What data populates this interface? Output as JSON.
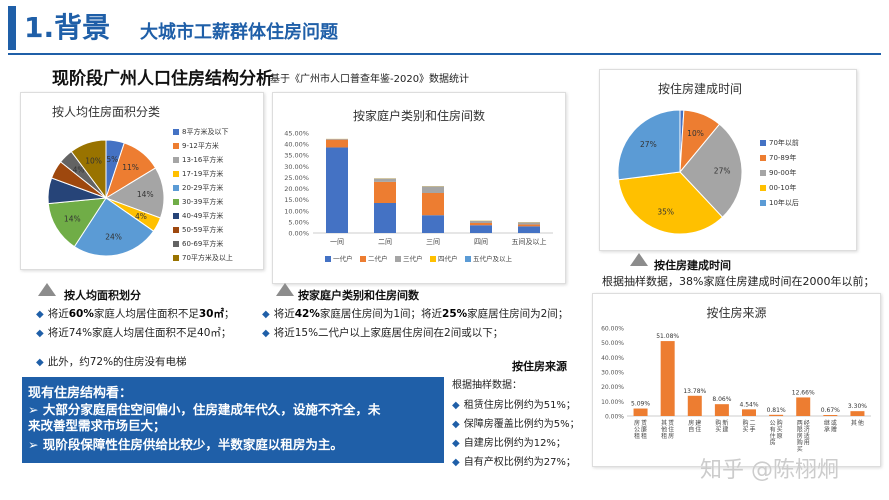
{
  "header": {
    "number": "1.背景",
    "subtitle": "大城市工薪群体住房问题"
  },
  "section": {
    "title": "现阶段广州人口住房结构分析",
    "source_note": "基于《广州市人口普查年鉴-2020》数据统计"
  },
  "chart_data": [
    {
      "type": "pie",
      "title": "按人均住房面积分类",
      "categories": [
        "8平方米及以下",
        "9-12平方米",
        "13-16平方米",
        "17-19平方米",
        "20-29平方米",
        "30-39平方米",
        "40-49平方米",
        "50-59平方米",
        "60-69平方米",
        "70平方米及以上"
      ],
      "values": [
        5,
        11,
        14,
        4,
        24,
        14,
        7,
        5,
        4,
        10
      ],
      "data_labels": [
        "5%",
        "11%",
        "14%",
        "4%",
        "24%",
        "14%",
        "",
        "",
        "4%",
        "10%"
      ],
      "colors": [
        "#4472c4",
        "#ed7d31",
        "#a5a5a5",
        "#ffc000",
        "#5b9bd5",
        "#70ad47",
        "#264478",
        "#9e480e",
        "#636363",
        "#997300"
      ],
      "legend": "right"
    },
    {
      "type": "bar",
      "stacked": true,
      "title": "按家庭户类别和住房间数",
      "categories": [
        "一间",
        "二间",
        "三间",
        "四间",
        "五间及以上"
      ],
      "series": [
        {
          "name": "一代户",
          "values": [
            38.5,
            13.5,
            8.0,
            3.5,
            3.0
          ]
        },
        {
          "name": "二代户",
          "values": [
            3.5,
            9.5,
            10.0,
            1.0,
            0.8
          ]
        },
        {
          "name": "三代户",
          "values": [
            0.3,
            1.5,
            3.0,
            1.0,
            1.0
          ]
        },
        {
          "name": "四代户",
          "values": [
            0.05,
            0.1,
            0.1,
            0.1,
            0.1
          ]
        },
        {
          "name": "五代户及以上",
          "values": [
            0.02,
            0.02,
            0.02,
            0.02,
            0.02
          ]
        }
      ],
      "yticks": [
        "0.00%",
        "5.00%",
        "10.00%",
        "15.00%",
        "20.00%",
        "25.00%",
        "30.00%",
        "35.00%",
        "40.00%",
        "45.00%"
      ],
      "ylim": [
        0,
        45
      ],
      "colors": [
        "#4472c4",
        "#ed7d31",
        "#a5a5a5",
        "#ffc000",
        "#5b9bd5"
      ],
      "legend": "bottom"
    },
    {
      "type": "pie",
      "title": "按住房建成时间",
      "categories": [
        "70年以前",
        "70-89年",
        "90-00年",
        "00-10年",
        "10年以后"
      ],
      "values": [
        1,
        10,
        27,
        35,
        27
      ],
      "data_labels": [
        "1%",
        "10%",
        "27%",
        "35%",
        "27%"
      ],
      "colors": [
        "#4472c4",
        "#ed7d31",
        "#a5a5a5",
        "#ffc000",
        "#5b9bd5"
      ],
      "legend": "right"
    },
    {
      "type": "bar",
      "title": "按住房来源",
      "categories": [
        "租赁廉租住房",
        "租赁其他住房",
        "自建住房",
        "购买新建商品房",
        "购买二手房",
        "购买原公有住房",
        "购买经济适用房、两限房",
        "继承或赠与",
        "其他"
      ],
      "category_labels": [
        "房公租赁廉租",
        "其他租赁住房",
        "房自建住",
        "购买新建",
        "购买二手",
        "公有住房购买原",
        "两限房购买经济适用",
        "继承或赠",
        "其他"
      ],
      "values": [
        5.09,
        51.08,
        13.78,
        8.06,
        4.54,
        0.81,
        12.66,
        0.67,
        3.3
      ],
      "data_labels": [
        "5.09%",
        "51.08%",
        "13.78%",
        "8.06%",
        "4.54%",
        "0.81%",
        "12.66%",
        "0.67%",
        "3.30%"
      ],
      "yticks": [
        "0.00%",
        "10.00%",
        "20.00%",
        "30.00%",
        "40.00%",
        "50.00%",
        "60.00%"
      ],
      "ylim": [
        0,
        60
      ],
      "color": "#ed7d31"
    }
  ],
  "captions": {
    "area": "按人均面积划分",
    "household": "按家庭户类别和住房间数",
    "built": "按住房建成时间",
    "source": "按住房来源"
  },
  "area_bullets": [
    {
      "pre": "将近",
      "bold": "60%",
      "mid": "家庭人均居住面积不足",
      "bold2": "30㎡",
      "post": "；"
    },
    {
      "pre": "将近74%家庭人均居住面积不足40㎡；",
      "bold": "",
      "mid": "",
      "bold2": "",
      "post": ""
    }
  ],
  "elevator_note": "此外，约72%的住房没有电梯",
  "household_bullets": [
    {
      "pre": "将近",
      "bold": "42%",
      "mid": "家庭居住房间为1间；将近",
      "bold2": "25%",
      "post": "家庭居住房间为2间；"
    },
    {
      "pre": "将近15%二代户以上家庭居住房间在2间或以下；",
      "bold": "",
      "mid": "",
      "bold2": "",
      "post": ""
    }
  ],
  "built_note": "根据抽样数据，38%家庭住房建成时间在2000年以前；",
  "summary": {
    "title": "现有住房结构看：",
    "lines": [
      "➢ 大部分家庭居住空间偏小，住房建成年代久，设施不齐全，未",
      "   来改善型需求市场巨大；",
      "➢ 现阶段保障性住房供给比较少，半数家庭以租房为主。"
    ]
  },
  "source_block": {
    "intro": "根据抽样数据：",
    "items": [
      "租赁住房比例约为51%；",
      "保障房覆盖比例约为5%；",
      "自建房比例约为12%；",
      "自有产权比例约为27%；"
    ]
  },
  "watermark": "知乎 @陈栩炯"
}
